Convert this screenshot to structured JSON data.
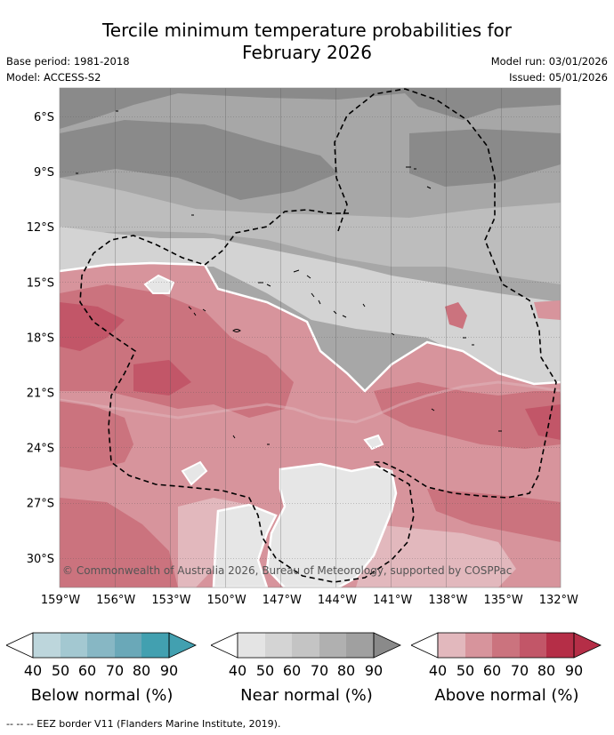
{
  "title_line1": "Tercile minimum temperature probabilities for",
  "title_line2": "February 2026",
  "base_period": "Base period: 1981-2018",
  "model": "Model: ACCESS-S2",
  "model_run": "Model run: 03/01/2026",
  "issued": "Issued: 05/01/2026",
  "copyright": "© Commonwealth of Australia 2026, Bureau of Meteorology, supported by COSPPac",
  "lat_labels": [
    "6°S",
    "9°S",
    "12°S",
    "15°S",
    "18°S",
    "21°S",
    "24°S",
    "27°S",
    "30°S"
  ],
  "lon_labels": [
    "159°W",
    "156°W",
    "153°W",
    "150°W",
    "147°W",
    "144°W",
    "141°W",
    "138°W",
    "135°W",
    "132°W"
  ],
  "legends": [
    {
      "label": "Below normal (%)",
      "ticks": [
        "40",
        "50",
        "60",
        "70",
        "80",
        "90"
      ],
      "colors": [
        "#ffffff",
        "#bdd6dc",
        "#a3c8d1",
        "#87b7c4",
        "#6aa8b8",
        "#42a0b0"
      ]
    },
    {
      "label": "Near normal (%)",
      "ticks": [
        "40",
        "50",
        "60",
        "70",
        "80",
        "90"
      ],
      "colors": [
        "#ffffff",
        "#e4e4e4",
        "#d4d4d4",
        "#c4c4c4",
        "#b0b0b0",
        "#8a8a8a"
      ]
    },
    {
      "label": "Above normal (%)",
      "ticks": [
        "40",
        "50",
        "60",
        "70",
        "80",
        "90"
      ],
      "colors": [
        "#ffffff",
        "#e2b8bd",
        "#d7949c",
        "#cb737e",
        "#c25668",
        "#b52e47"
      ]
    }
  ],
  "footnote": "--  --  -- EEZ border V11 (Flanders Marine Institute, 2019).",
  "colors": {
    "near_dark": "#8a8a8a",
    "near_70": "#a4a4a4",
    "near_60": "#bdbdbd",
    "near_50": "#cacaca",
    "near_40": "#e3e3e3",
    "above_50": "#e2b8bd",
    "above_60": "#d7949c",
    "above_70": "#cb737e",
    "above_80": "#c25668"
  }
}
